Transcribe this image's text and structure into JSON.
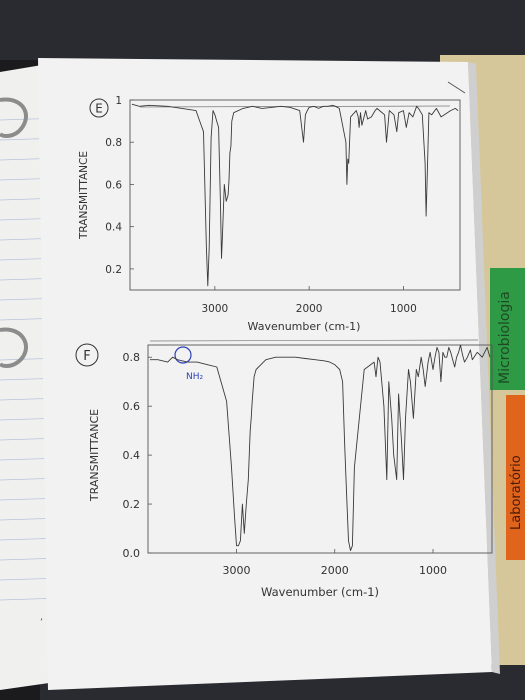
{
  "panel_labels": [
    "E",
    "F"
  ],
  "annotation": "NH₂",
  "tabs": {
    "tab1": "Microbiologia",
    "tab2": "Laboratório"
  },
  "colors": {
    "trace": "#3a3a3a",
    "annotation": "#2a3fb8",
    "tab_green": "#2f9a45",
    "tab_orange": "#e0641c",
    "paper": "#f2f2f2"
  },
  "chart_data": [
    {
      "type": "line",
      "title": "",
      "xlabel": "Wavenumber (cm-1)",
      "ylabel": "TRANSMITTANCE",
      "xlim": [
        3900,
        400
      ],
      "ylim": [
        0.1,
        1.0
      ],
      "xticks": [
        {
          "v": 3000,
          "label": "3000"
        },
        {
          "v": 2000,
          "label": "2000"
        },
        {
          "v": 1000,
          "label": "1000"
        }
      ],
      "yticks": [
        {
          "v": 1.0,
          "label": "1"
        },
        {
          "v": 0.8,
          "label": "0.8"
        },
        {
          "v": 0.6,
          "label": "0.6"
        },
        {
          "v": 0.4,
          "label": "0.4"
        },
        {
          "v": 0.2,
          "label": "0.2"
        }
      ],
      "series": [
        {
          "x": [
            3880,
            3800,
            3700,
            3500,
            3350,
            3200,
            3120,
            3090,
            3075,
            3060,
            3040,
            3020,
            3000,
            2980,
            2960,
            2940,
            2930,
            2920,
            2900,
            2880,
            2860,
            2850,
            2840,
            2830,
            2820,
            2800,
            2700,
            2600,
            2500,
            2400,
            2300,
            2200,
            2100,
            2060,
            2040,
            2020,
            2000,
            1950,
            1900,
            1850,
            1800,
            1750,
            1720,
            1680,
            1610,
            1600,
            1590,
            1580,
            1560,
            1500,
            1480,
            1470,
            1455,
            1440,
            1400,
            1380,
            1340,
            1300,
            1280,
            1200,
            1180,
            1150,
            1100,
            1070,
            1050,
            1000,
            970,
            940,
            900,
            860,
            840,
            800,
            770,
            760,
            750,
            730,
            700,
            650,
            600,
            500,
            450,
            420
          ],
          "y": [
            0.98,
            0.97,
            0.975,
            0.97,
            0.96,
            0.95,
            0.85,
            0.3,
            0.12,
            0.3,
            0.82,
            0.95,
            0.93,
            0.9,
            0.87,
            0.5,
            0.25,
            0.35,
            0.6,
            0.52,
            0.55,
            0.62,
            0.75,
            0.78,
            0.9,
            0.94,
            0.96,
            0.97,
            0.96,
            0.965,
            0.97,
            0.965,
            0.95,
            0.8,
            0.93,
            0.95,
            0.965,
            0.97,
            0.96,
            0.97,
            0.97,
            0.975,
            0.97,
            0.96,
            0.8,
            0.6,
            0.72,
            0.7,
            0.92,
            0.95,
            0.92,
            0.87,
            0.94,
            0.88,
            0.95,
            0.91,
            0.92,
            0.95,
            0.96,
            0.93,
            0.8,
            0.95,
            0.93,
            0.85,
            0.94,
            0.95,
            0.87,
            0.94,
            0.92,
            0.97,
            0.96,
            0.93,
            0.7,
            0.45,
            0.6,
            0.94,
            0.93,
            0.96,
            0.92,
            0.95,
            0.96,
            0.95
          ]
        }
      ]
    },
    {
      "type": "line",
      "title": "",
      "xlabel": "Wavenumber (cm-1)",
      "ylabel": "TRANSMITTANCE",
      "xlim": [
        3900,
        400
      ],
      "ylim": [
        0.0,
        0.85
      ],
      "xticks": [
        {
          "v": 3000,
          "label": "3000"
        },
        {
          "v": 2000,
          "label": "2000"
        },
        {
          "v": 1000,
          "label": "1000"
        }
      ],
      "yticks": [
        {
          "v": 0.8,
          "label": "0.8"
        },
        {
          "v": 0.6,
          "label": "0.6"
        },
        {
          "v": 0.4,
          "label": "0.4"
        },
        {
          "v": 0.2,
          "label": "0.2"
        },
        {
          "v": 0.0,
          "label": "0.0"
        }
      ],
      "series": [
        {
          "x": [
            3880,
            3800,
            3700,
            3650,
            3600,
            3500,
            3400,
            3300,
            3200,
            3100,
            3050,
            3020,
            3000,
            2980,
            2960,
            2940,
            2920,
            2900,
            2880,
            2860,
            2850,
            2840,
            2820,
            2800,
            2750,
            2700,
            2600,
            2500,
            2400,
            2300,
            2200,
            2100,
            2050,
            2000,
            1950,
            1920,
            1900,
            1880,
            1860,
            1840,
            1820,
            1800,
            1700,
            1600,
            1580,
            1560,
            1540,
            1500,
            1470,
            1450,
            1420,
            1400,
            1370,
            1350,
            1320,
            1300,
            1280,
            1250,
            1230,
            1200,
            1170,
            1150,
            1120,
            1100,
            1080,
            1050,
            1030,
            1000,
            980,
            960,
            940,
            920,
            900,
            880,
            860,
            840,
            820,
            800,
            780,
            760,
            740,
            720,
            700,
            680,
            650,
            620,
            600,
            550,
            500,
            450,
            420
          ],
          "y": [
            0.79,
            0.79,
            0.78,
            0.8,
            0.79,
            0.78,
            0.78,
            0.77,
            0.76,
            0.62,
            0.35,
            0.15,
            0.03,
            0.03,
            0.05,
            0.2,
            0.08,
            0.2,
            0.3,
            0.5,
            0.55,
            0.62,
            0.72,
            0.75,
            0.77,
            0.79,
            0.8,
            0.8,
            0.8,
            0.795,
            0.79,
            0.785,
            0.78,
            0.77,
            0.75,
            0.7,
            0.45,
            0.25,
            0.05,
            0.01,
            0.03,
            0.35,
            0.75,
            0.78,
            0.72,
            0.8,
            0.78,
            0.6,
            0.3,
            0.7,
            0.55,
            0.4,
            0.3,
            0.65,
            0.45,
            0.3,
            0.55,
            0.75,
            0.7,
            0.55,
            0.75,
            0.72,
            0.8,
            0.75,
            0.68,
            0.78,
            0.82,
            0.75,
            0.8,
            0.84,
            0.82,
            0.7,
            0.82,
            0.8,
            0.8,
            0.84,
            0.82,
            0.79,
            0.76,
            0.8,
            0.82,
            0.85,
            0.81,
            0.78,
            0.8,
            0.83,
            0.79,
            0.82,
            0.8,
            0.84,
            0.8
          ]
        }
      ]
    }
  ]
}
